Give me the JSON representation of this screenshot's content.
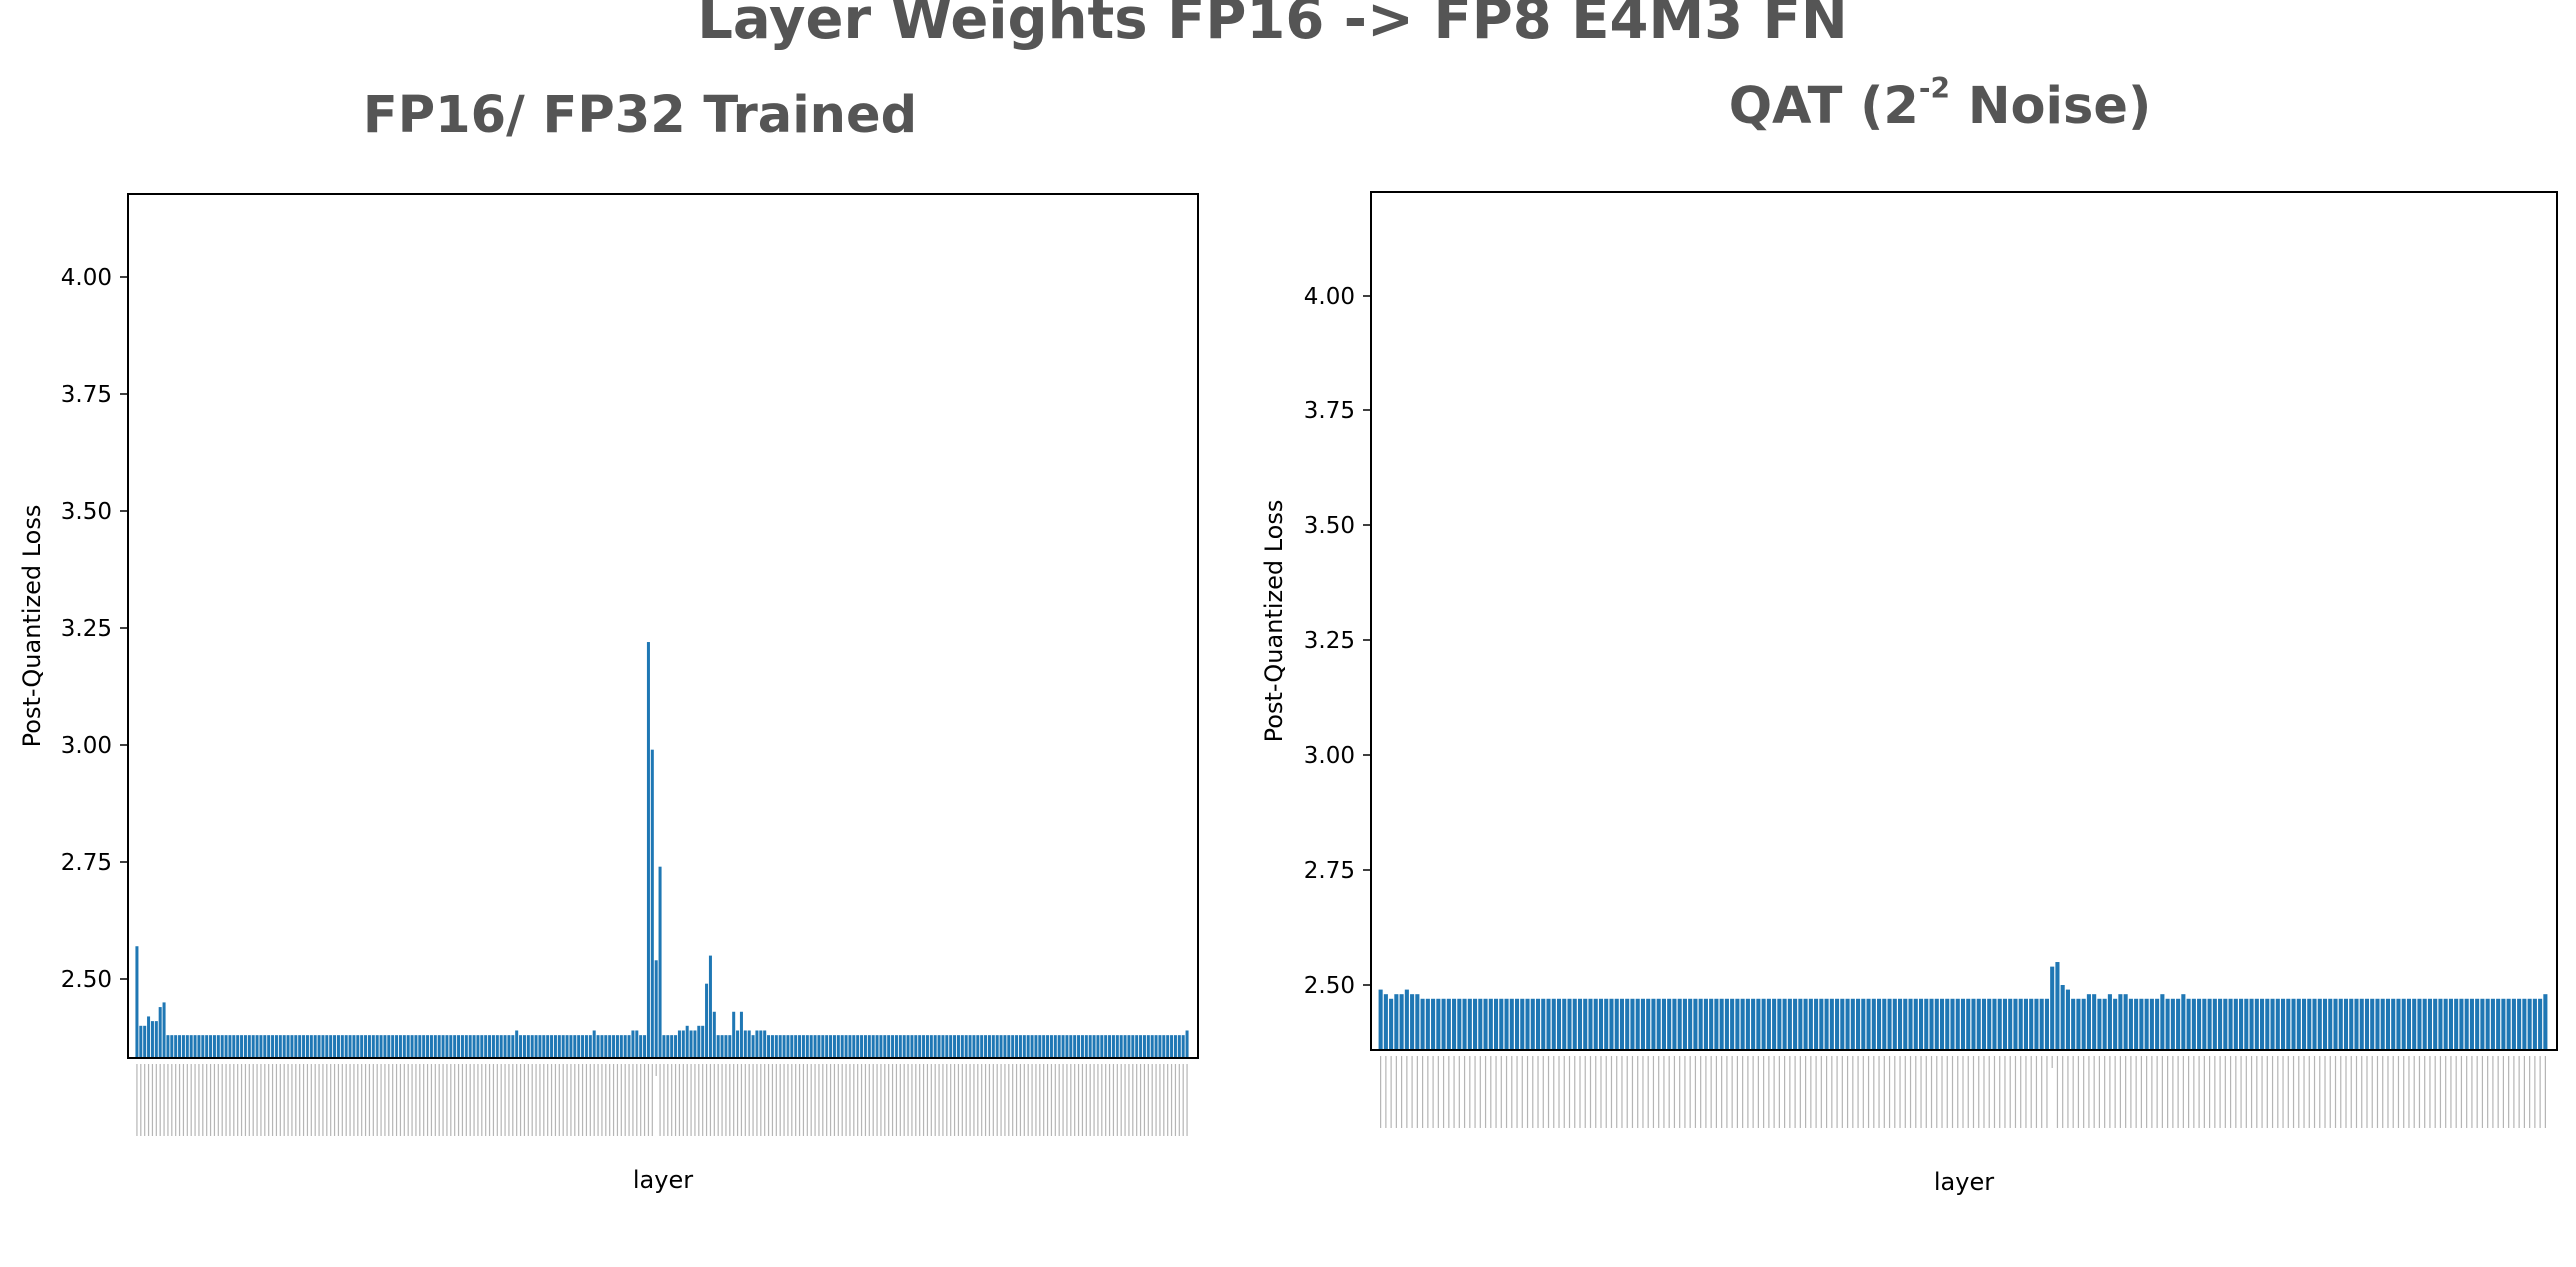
{
  "suptitle": "Layer Weights FP16 -> FP8 E4M3 FN",
  "colors": {
    "bar": "#1f77b4",
    "title": "#555555",
    "axis": "#000000"
  },
  "chart_data": [
    {
      "type": "bar",
      "title": "FP16/ FP32 Trained",
      "xlabel": "layer",
      "ylabel": "Post-Quantized Loss",
      "ylim": [
        2.32,
        4.18
      ],
      "yticks": [
        "2.50",
        "2.75",
        "3.00",
        "3.25",
        "3.50",
        "3.75",
        "4.00"
      ],
      "grid": false,
      "legend": "none",
      "values": [
        2.57,
        2.4,
        2.4,
        2.42,
        2.41,
        2.41,
        2.44,
        2.45,
        2.38,
        2.38,
        2.38,
        2.38,
        2.38,
        2.38,
        2.38,
        2.38,
        2.38,
        2.38,
        2.38,
        2.38,
        2.38,
        2.38,
        2.38,
        2.38,
        2.38,
        2.38,
        2.38,
        2.38,
        2.38,
        2.38,
        2.38,
        2.38,
        2.38,
        2.38,
        2.38,
        2.38,
        2.38,
        2.38,
        2.38,
        2.38,
        2.38,
        2.38,
        2.38,
        2.38,
        2.38,
        2.38,
        2.38,
        2.38,
        2.38,
        2.38,
        2.38,
        2.38,
        2.38,
        2.38,
        2.38,
        2.38,
        2.38,
        2.38,
        2.38,
        2.38,
        2.38,
        2.38,
        2.38,
        2.38,
        2.38,
        2.38,
        2.38,
        2.38,
        2.38,
        2.38,
        2.38,
        2.38,
        2.38,
        2.38,
        2.38,
        2.38,
        2.38,
        2.38,
        2.38,
        2.38,
        2.38,
        2.38,
        2.38,
        2.38,
        2.38,
        2.38,
        2.38,
        2.38,
        2.38,
        2.38,
        2.38,
        2.38,
        2.38,
        2.38,
        2.38,
        2.38,
        2.38,
        2.38,
        2.39,
        2.38,
        2.38,
        2.38,
        2.38,
        2.38,
        2.38,
        2.38,
        2.38,
        2.38,
        2.38,
        2.38,
        2.38,
        2.38,
        2.38,
        2.38,
        2.38,
        2.38,
        2.38,
        2.38,
        2.39,
        2.38,
        2.38,
        2.38,
        2.38,
        2.38,
        2.38,
        2.38,
        2.38,
        2.38,
        2.39,
        2.39,
        2.38,
        2.38,
        3.22,
        2.99,
        2.54,
        2.74,
        2.38,
        2.38,
        2.38,
        2.38,
        2.39,
        2.39,
        2.4,
        2.39,
        2.39,
        2.4,
        2.4,
        2.49,
        2.55,
        2.43,
        2.38,
        2.38,
        2.38,
        2.38,
        2.43,
        2.39,
        2.43,
        2.39,
        2.39,
        2.38,
        2.39,
        2.39,
        2.39,
        2.38,
        2.38,
        2.38,
        2.38,
        2.38,
        2.38,
        2.38,
        2.38,
        2.38,
        2.38,
        2.38,
        2.38,
        2.38,
        2.38,
        2.38,
        2.38,
        2.38,
        2.38,
        2.38,
        2.38,
        2.38,
        2.38,
        2.38,
        2.38,
        2.38,
        2.38,
        2.38,
        2.38,
        2.38,
        2.38,
        2.38,
        2.38,
        2.38,
        2.38,
        2.38,
        2.38,
        2.38,
        2.38,
        2.38,
        2.38,
        2.38,
        2.38,
        2.38,
        2.38,
        2.38,
        2.38,
        2.38,
        2.38,
        2.38,
        2.38,
        2.38,
        2.38,
        2.38,
        2.38,
        2.38,
        2.38,
        2.38,
        2.38,
        2.38,
        2.38,
        2.38,
        2.38,
        2.38,
        2.38,
        2.38,
        2.38,
        2.38,
        2.38,
        2.38,
        2.38,
        2.38,
        2.38,
        2.38,
        2.38,
        2.38,
        2.38,
        2.38,
        2.38,
        2.38,
        2.38,
        2.38,
        2.38,
        2.38,
        2.38,
        2.38,
        2.38,
        2.38,
        2.38,
        2.38,
        2.38,
        2.38,
        2.38,
        2.38,
        2.38,
        2.38,
        2.38,
        2.38,
        2.38,
        2.38,
        2.38,
        2.38,
        2.38,
        2.38,
        2.38,
        2.38,
        2.38,
        2.38,
        2.38,
        2.39
      ],
      "gap_after_index": 133
    },
    {
      "type": "bar",
      "title_parts": {
        "prefix": "QAT (2",
        "superscript": "-2",
        "suffix": " Noise)"
      },
      "xlabel": "layer",
      "ylabel": "Post-Quantized Loss",
      "ylim": [
        2.36,
        4.19
      ],
      "yticks": [
        "2.50",
        "2.75",
        "3.00",
        "3.25",
        "3.50",
        "3.75",
        "4.00"
      ],
      "grid": false,
      "legend": "none",
      "values": [
        2.49,
        2.48,
        2.47,
        2.48,
        2.48,
        2.49,
        2.48,
        2.48,
        2.47,
        2.47,
        2.47,
        2.47,
        2.47,
        2.47,
        2.47,
        2.47,
        2.47,
        2.47,
        2.47,
        2.47,
        2.47,
        2.47,
        2.47,
        2.47,
        2.47,
        2.47,
        2.47,
        2.47,
        2.47,
        2.47,
        2.47,
        2.47,
        2.47,
        2.47,
        2.47,
        2.47,
        2.47,
        2.47,
        2.47,
        2.47,
        2.47,
        2.47,
        2.47,
        2.47,
        2.47,
        2.47,
        2.47,
        2.47,
        2.47,
        2.47,
        2.47,
        2.47,
        2.47,
        2.47,
        2.47,
        2.47,
        2.47,
        2.47,
        2.47,
        2.47,
        2.47,
        2.47,
        2.47,
        2.47,
        2.47,
        2.47,
        2.47,
        2.47,
        2.47,
        2.47,
        2.47,
        2.47,
        2.47,
        2.47,
        2.47,
        2.47,
        2.47,
        2.47,
        2.47,
        2.47,
        2.47,
        2.47,
        2.47,
        2.47,
        2.47,
        2.47,
        2.47,
        2.47,
        2.47,
        2.47,
        2.47,
        2.47,
        2.47,
        2.47,
        2.47,
        2.47,
        2.47,
        2.47,
        2.47,
        2.47,
        2.47,
        2.47,
        2.47,
        2.47,
        2.47,
        2.47,
        2.47,
        2.47,
        2.47,
        2.47,
        2.47,
        2.47,
        2.47,
        2.47,
        2.47,
        2.47,
        2.47,
        2.47,
        2.47,
        2.47,
        2.47,
        2.47,
        2.47,
        2.47,
        2.47,
        2.47,
        2.47,
        2.47,
        2.54,
        2.55,
        2.5,
        2.49,
        2.47,
        2.47,
        2.47,
        2.48,
        2.48,
        2.47,
        2.47,
        2.48,
        2.47,
        2.48,
        2.48,
        2.47,
        2.47,
        2.47,
        2.47,
        2.47,
        2.47,
        2.48,
        2.47,
        2.47,
        2.47,
        2.48,
        2.47,
        2.47,
        2.47,
        2.47,
        2.47,
        2.47,
        2.47,
        2.47,
        2.47,
        2.47,
        2.47,
        2.47,
        2.47,
        2.47,
        2.47,
        2.47,
        2.47,
        2.47,
        2.47,
        2.47,
        2.47,
        2.47,
        2.47,
        2.47,
        2.47,
        2.47,
        2.47,
        2.47,
        2.47,
        2.47,
        2.47,
        2.47,
        2.47,
        2.47,
        2.47,
        2.47,
        2.47,
        2.47,
        2.47,
        2.47,
        2.47,
        2.47,
        2.47,
        2.47,
        2.47,
        2.47,
        2.47,
        2.47,
        2.47,
        2.47,
        2.47,
        2.47,
        2.47,
        2.47,
        2.47,
        2.47,
        2.47,
        2.47,
        2.47,
        2.47,
        2.47,
        2.47,
        2.47,
        2.47,
        2.47,
        2.47,
        2.47,
        2.47,
        2.48
      ],
      "gap_after_index": 127
    }
  ]
}
